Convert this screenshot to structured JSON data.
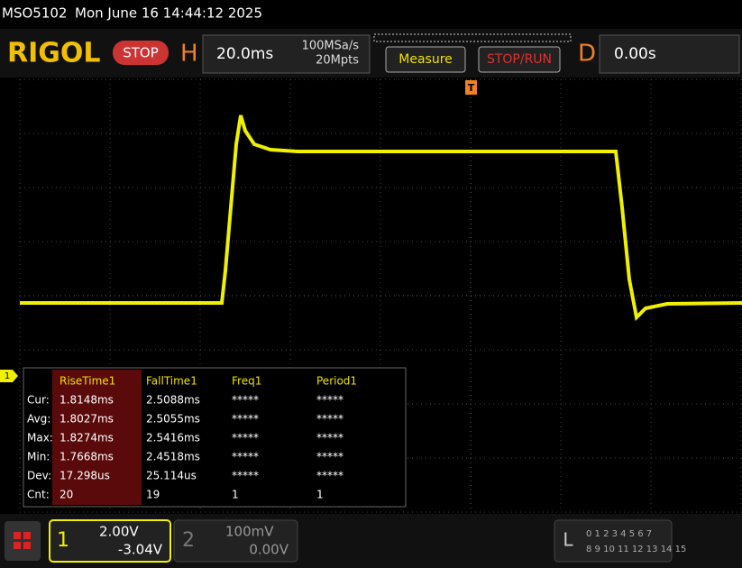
{
  "status_bar": {
    "model": "MSO5102",
    "datetime": "Mon June 16 14:44:12 2025"
  },
  "header": {
    "logo": "RIGOL",
    "stop_button": "STOP",
    "h_label": "H",
    "timebase": "20.0ms",
    "sample_rate": "100MSa/s",
    "memory_depth": "20Mpts",
    "measure_button": "Measure",
    "stop_run_button": "STOP/RUN",
    "d_label": "D",
    "delay": "0.00s"
  },
  "trigger_marker": "T",
  "channel_marker": "1",
  "measurements": {
    "columns": [
      "RiseTime1",
      "FallTime1",
      "Freq1",
      "Period1"
    ],
    "rows": [
      {
        "label": "Cur:",
        "values": [
          "1.8148ms",
          "2.5088ms",
          "*****",
          "*****"
        ]
      },
      {
        "label": "Avg:",
        "values": [
          "1.8027ms",
          "2.5055ms",
          "*****",
          "*****"
        ]
      },
      {
        "label": "Max:",
        "values": [
          "1.8274ms",
          "2.5416ms",
          "*****",
          "*****"
        ]
      },
      {
        "label": "Min:",
        "values": [
          "1.7668ms",
          "2.4518ms",
          "*****",
          "*****"
        ]
      },
      {
        "label": "Dev:",
        "values": [
          "17.298us",
          "25.114us",
          "*****",
          "*****"
        ]
      },
      {
        "label": "Cnt:",
        "values": [
          "20",
          "19",
          "1",
          "1"
        ]
      }
    ]
  },
  "footer": {
    "ch1": {
      "number": "1",
      "scale": "2.00V",
      "offset": "-3.04V"
    },
    "ch2": {
      "number": "2",
      "scale": "100mV",
      "offset": "0.00V"
    },
    "la": {
      "label": "L",
      "row1": "0 1 2 3  4 5 6 7",
      "row2": "8 9 10 11 12 13 14 15"
    }
  }
}
